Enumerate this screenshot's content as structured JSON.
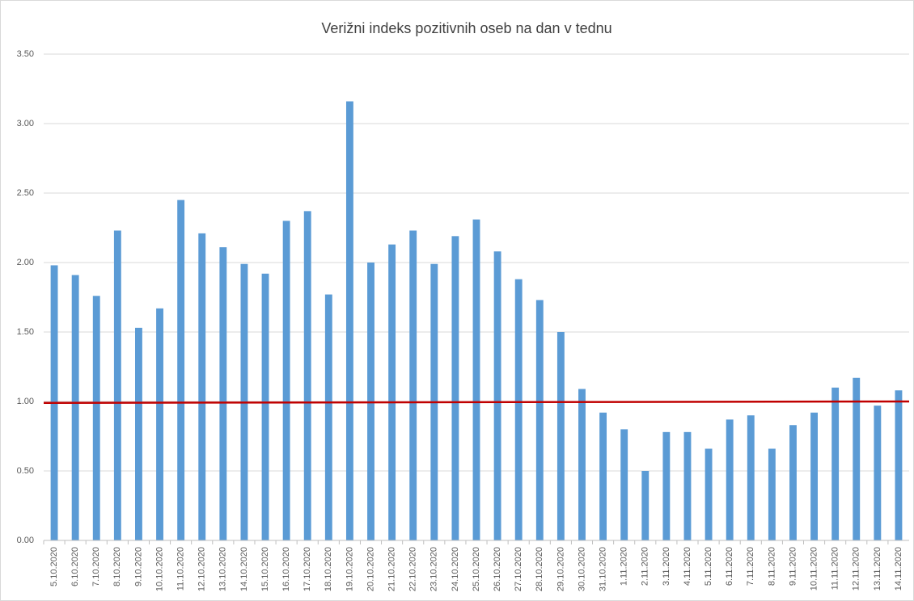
{
  "chart_data": {
    "type": "bar",
    "title": "Verižni indeks pozitivnih oseb na dan v tednu",
    "categories": [
      "5.10.2020",
      "6.10.2020",
      "7.10.2020",
      "8.10.2020",
      "9.10.2020",
      "10.10.2020",
      "11.10.2020",
      "12.10.2020",
      "13.10.2020",
      "14.10.2020",
      "15.10.2020",
      "16.10.2020",
      "17.10.2020",
      "18.10.2020",
      "19.10.2020",
      "20.10.2020",
      "21.10.2020",
      "22.10.2020",
      "23.10.2020",
      "24.10.2020",
      "25.10.2020",
      "26.10.2020",
      "27.10.2020",
      "28.10.2020",
      "29.10.2020",
      "30.10.2020",
      "31.10.2020",
      "1.11.2020",
      "2.11.2020",
      "3.11.2020",
      "4.11.2020",
      "5.11.2020",
      "6.11.2020",
      "7.11.2020",
      "8.11.2020",
      "9.11.2020",
      "10.11.2020",
      "11.11.2020",
      "12.11.2020",
      "13.11.2020",
      "14.11.2020"
    ],
    "values": [
      1.98,
      1.91,
      1.76,
      2.23,
      1.53,
      1.67,
      2.45,
      2.21,
      2.11,
      1.99,
      1.92,
      2.3,
      2.37,
      1.77,
      3.16,
      2.0,
      2.13,
      2.23,
      1.99,
      2.19,
      2.31,
      2.08,
      1.88,
      1.73,
      1.5,
      1.09,
      0.92,
      0.8,
      0.5,
      0.78,
      0.78,
      0.66,
      0.87,
      0.9,
      0.66,
      0.83,
      0.92,
      1.1,
      1.17,
      0.97,
      1.08
    ],
    "color": "#5b9bd5",
    "trendline": {
      "start": 0.99,
      "end": 1.0,
      "color": "#c00000"
    },
    "ylim": [
      0,
      3.5
    ],
    "yticks": [
      {
        "value": 0,
        "label": "0.00"
      },
      {
        "value": 0.5,
        "label": "0.50"
      },
      {
        "value": 1,
        "label": "1.00"
      },
      {
        "value": 1.5,
        "label": "1.50"
      },
      {
        "value": 2,
        "label": "2.00"
      },
      {
        "value": 2.5,
        "label": "2.50"
      },
      {
        "value": 3,
        "label": "3.00"
      },
      {
        "value": 3.5,
        "label": "3.50"
      }
    ],
    "grid": true
  }
}
